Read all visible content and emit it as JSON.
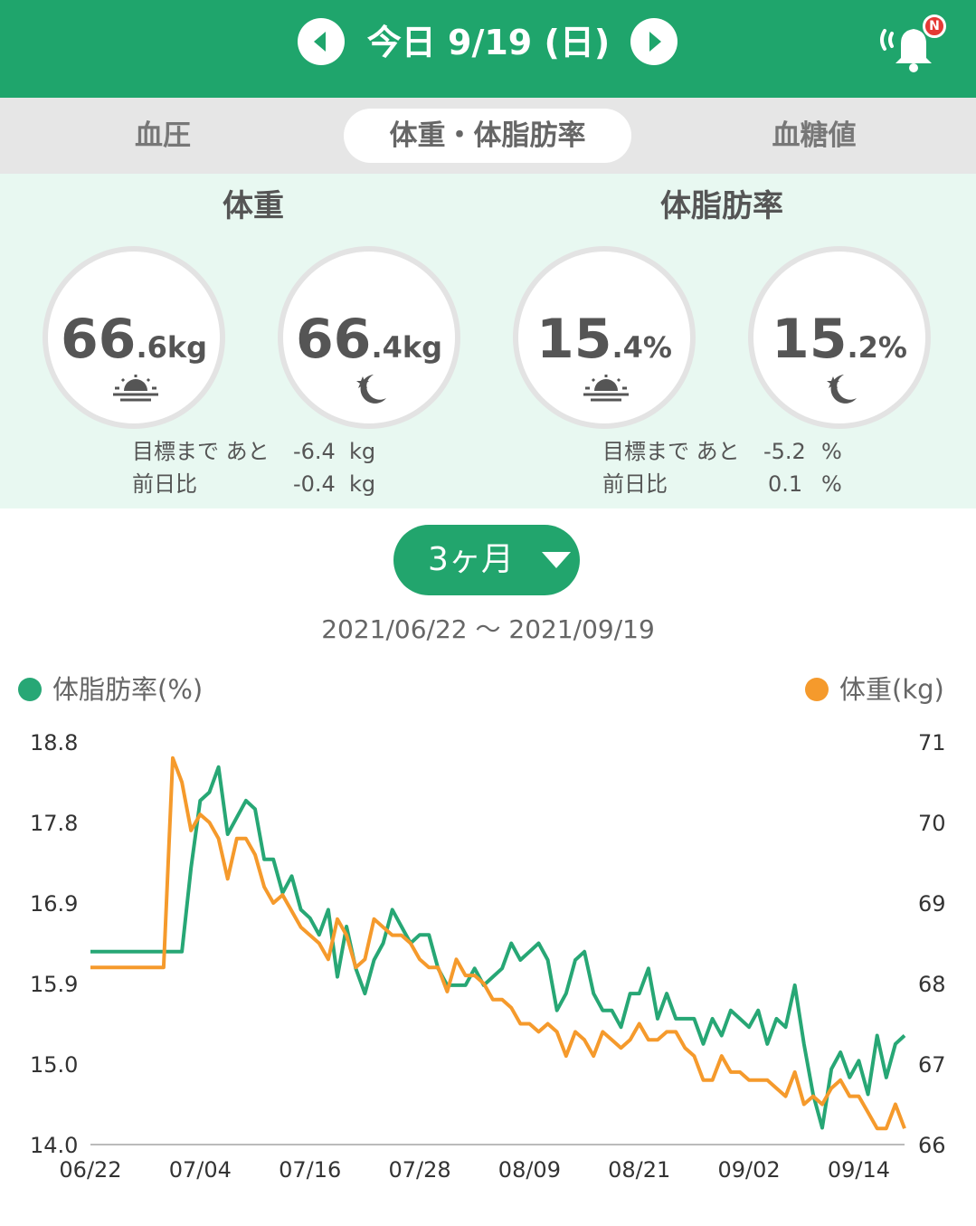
{
  "header": {
    "date_title": "今日 9/19 (日)",
    "notification_badge": "N",
    "color": "#1fa56c"
  },
  "tabs": [
    {
      "label": "血圧",
      "active": false
    },
    {
      "label": "体重・体脂肪率",
      "active": true
    },
    {
      "label": "血糖値",
      "active": false
    }
  ],
  "weight": {
    "title": "体重",
    "morning": {
      "int": "66",
      "dec": ".6",
      "unit": "kg",
      "icon": "sunrise-icon"
    },
    "evening": {
      "int": "66",
      "dec": ".4",
      "unit": "kg",
      "icon": "moon-star-icon"
    },
    "goal_label": "目標まで あと",
    "goal_value": "-6.4",
    "goal_unit": "kg",
    "diff_label": "前日比",
    "diff_value": "-0.4",
    "diff_unit": "kg"
  },
  "body_fat": {
    "title": "体脂肪率",
    "morning": {
      "int": "15",
      "dec": ".4",
      "unit": "%",
      "icon": "sunrise-icon"
    },
    "evening": {
      "int": "15",
      "dec": ".2",
      "unit": "%",
      "icon": "moon-star-icon"
    },
    "goal_label": "目標まで あと",
    "goal_value": "-5.2",
    "goal_unit": "%",
    "diff_label": "前日比",
    "diff_value": "0.1",
    "diff_unit": "%"
  },
  "period": {
    "label": "3ヶ月",
    "icon": "triangle-down-icon"
  },
  "date_range": "2021/06/22 〜 2021/09/19",
  "chart_data": {
    "type": "line",
    "left_axis_label": "体脂肪率(%)",
    "right_axis_label": "体重(kg)",
    "left_ticks": [
      "18.8",
      "17.8",
      "16.9",
      "15.9",
      "15.0",
      "14.0"
    ],
    "right_ticks": [
      "71",
      "70",
      "69",
      "68",
      "67",
      "66"
    ],
    "left_range": [
      14.0,
      18.8
    ],
    "right_range": [
      66,
      71
    ],
    "x_ticks": [
      "06/22",
      "07/04",
      "07/16",
      "07/28",
      "08/09",
      "08/21",
      "09/02",
      "09/14"
    ],
    "x_tick_days": [
      0,
      12,
      24,
      36,
      48,
      60,
      72,
      84
    ],
    "x_range_days": [
      0,
      89
    ],
    "series": [
      {
        "name": "体脂肪率(%)",
        "axis": "left",
        "color": "#27a775",
        "points": [
          [
            0,
            16.3
          ],
          [
            10,
            16.3
          ],
          [
            11,
            17.3
          ],
          [
            12,
            18.1
          ],
          [
            13,
            18.2
          ],
          [
            14,
            18.5
          ],
          [
            15,
            17.7
          ],
          [
            16,
            17.9
          ],
          [
            17,
            18.1
          ],
          [
            18,
            18.0
          ],
          [
            19,
            17.4
          ],
          [
            20,
            17.4
          ],
          [
            21,
            17.0
          ],
          [
            22,
            17.2
          ],
          [
            23,
            16.8
          ],
          [
            24,
            16.7
          ],
          [
            25,
            16.5
          ],
          [
            26,
            16.8
          ],
          [
            27,
            16.0
          ],
          [
            28,
            16.6
          ],
          [
            29,
            16.1
          ],
          [
            30,
            15.8
          ],
          [
            31,
            16.2
          ],
          [
            32,
            16.4
          ],
          [
            33,
            16.8
          ],
          [
            34,
            16.6
          ],
          [
            35,
            16.4
          ],
          [
            36,
            16.5
          ],
          [
            37,
            16.5
          ],
          [
            38,
            16.1
          ],
          [
            39,
            15.9
          ],
          [
            40,
            15.9
          ],
          [
            41,
            15.9
          ],
          [
            42,
            16.1
          ],
          [
            43,
            15.9
          ],
          [
            44,
            16.0
          ],
          [
            45,
            16.1
          ],
          [
            46,
            16.4
          ],
          [
            47,
            16.2
          ],
          [
            48,
            16.3
          ],
          [
            49,
            16.4
          ],
          [
            50,
            16.2
          ],
          [
            51,
            15.6
          ],
          [
            52,
            15.8
          ],
          [
            53,
            16.2
          ],
          [
            54,
            16.3
          ],
          [
            55,
            15.8
          ],
          [
            56,
            15.6
          ],
          [
            57,
            15.6
          ],
          [
            58,
            15.4
          ],
          [
            59,
            15.8
          ],
          [
            60,
            15.8
          ],
          [
            61,
            16.1
          ],
          [
            62,
            15.5
          ],
          [
            63,
            15.8
          ],
          [
            64,
            15.5
          ],
          [
            65,
            15.5
          ],
          [
            66,
            15.5
          ],
          [
            67,
            15.2
          ],
          [
            68,
            15.5
          ],
          [
            69,
            15.3
          ],
          [
            70,
            15.6
          ],
          [
            71,
            15.5
          ],
          [
            72,
            15.4
          ],
          [
            73,
            15.6
          ],
          [
            74,
            15.2
          ],
          [
            75,
            15.5
          ],
          [
            76,
            15.4
          ],
          [
            77,
            15.9
          ],
          [
            78,
            15.2
          ],
          [
            79,
            14.6
          ],
          [
            80,
            14.2
          ],
          [
            81,
            14.9
          ],
          [
            82,
            15.1
          ],
          [
            83,
            14.8
          ],
          [
            84,
            15.0
          ],
          [
            85,
            14.6
          ],
          [
            86,
            15.3
          ],
          [
            87,
            14.8
          ],
          [
            88,
            15.2
          ],
          [
            89,
            15.3
          ]
        ]
      },
      {
        "name": "体重(kg)",
        "axis": "right",
        "color": "#f59a2c",
        "points": [
          [
            0,
            68.2
          ],
          [
            8,
            68.2
          ],
          [
            9,
            70.8
          ],
          [
            10,
            70.5
          ],
          [
            11,
            69.9
          ],
          [
            12,
            70.1
          ],
          [
            13,
            70.0
          ],
          [
            14,
            69.8
          ],
          [
            15,
            69.3
          ],
          [
            16,
            69.8
          ],
          [
            17,
            69.8
          ],
          [
            18,
            69.6
          ],
          [
            19,
            69.2
          ],
          [
            20,
            69.0
          ],
          [
            21,
            69.1
          ],
          [
            22,
            68.9
          ],
          [
            23,
            68.7
          ],
          [
            24,
            68.6
          ],
          [
            25,
            68.5
          ],
          [
            26,
            68.3
          ],
          [
            27,
            68.8
          ],
          [
            28,
            68.6
          ],
          [
            29,
            68.2
          ],
          [
            30,
            68.3
          ],
          [
            31,
            68.8
          ],
          [
            32,
            68.7
          ],
          [
            33,
            68.6
          ],
          [
            34,
            68.6
          ],
          [
            35,
            68.5
          ],
          [
            36,
            68.3
          ],
          [
            37,
            68.2
          ],
          [
            38,
            68.2
          ],
          [
            39,
            67.9
          ],
          [
            40,
            68.3
          ],
          [
            41,
            68.1
          ],
          [
            42,
            68.1
          ],
          [
            43,
            68.0
          ],
          [
            44,
            67.8
          ],
          [
            45,
            67.8
          ],
          [
            46,
            67.7
          ],
          [
            47,
            67.5
          ],
          [
            48,
            67.5
          ],
          [
            49,
            67.4
          ],
          [
            50,
            67.5
          ],
          [
            51,
            67.4
          ],
          [
            52,
            67.1
          ],
          [
            53,
            67.4
          ],
          [
            54,
            67.3
          ],
          [
            55,
            67.1
          ],
          [
            56,
            67.4
          ],
          [
            57,
            67.3
          ],
          [
            58,
            67.2
          ],
          [
            59,
            67.3
          ],
          [
            60,
            67.5
          ],
          [
            61,
            67.3
          ],
          [
            62,
            67.3
          ],
          [
            63,
            67.4
          ],
          [
            64,
            67.4
          ],
          [
            65,
            67.2
          ],
          [
            66,
            67.1
          ],
          [
            67,
            66.8
          ],
          [
            68,
            66.8
          ],
          [
            69,
            67.1
          ],
          [
            70,
            66.9
          ],
          [
            71,
            66.9
          ],
          [
            72,
            66.8
          ],
          [
            73,
            66.8
          ],
          [
            74,
            66.8
          ],
          [
            75,
            66.7
          ],
          [
            76,
            66.6
          ],
          [
            77,
            66.9
          ],
          [
            78,
            66.5
          ],
          [
            79,
            66.6
          ],
          [
            80,
            66.5
          ],
          [
            81,
            66.7
          ],
          [
            82,
            66.8
          ],
          [
            83,
            66.6
          ],
          [
            84,
            66.6
          ],
          [
            85,
            66.4
          ],
          [
            86,
            66.2
          ],
          [
            87,
            66.2
          ],
          [
            88,
            66.5
          ],
          [
            89,
            66.2
          ]
        ]
      }
    ]
  }
}
